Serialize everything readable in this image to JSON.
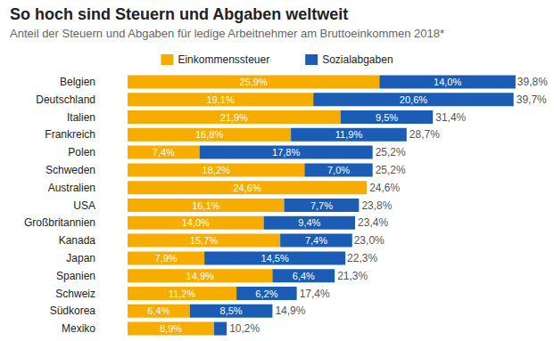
{
  "chart_data": {
    "type": "bar",
    "title": "So hoch sind Steuern und Abgaben weltweit",
    "subtitle": "Anteil der Steuern und Abgaben für ledige Arbeitnehmer am Bruttoeinkommen 2018*",
    "orientation": "horizontal",
    "stacked": true,
    "data_labels": true,
    "tick_labels": "y",
    "grid": false,
    "legend": "top",
    "xlim": [
      0,
      40
    ],
    "categories": [
      "Belgien",
      "Deutschland",
      "Italien",
      "Frankreich",
      "Polen",
      "Schweden",
      "Australien",
      "USA",
      "Großbritannien",
      "Kanada",
      "Japan",
      "Spanien",
      "Schweiz",
      "Südkorea",
      "Mexiko"
    ],
    "series": [
      {
        "name": "Einkommenssteuer",
        "color": "#f7ac00",
        "values": [
          25.9,
          19.1,
          21.9,
          16.8,
          7.4,
          18.2,
          24.6,
          16.1,
          14.0,
          15.7,
          7.9,
          14.9,
          11.2,
          6.4,
          8.9
        ],
        "value_labels": [
          "25,9%",
          "19,1%",
          "21,9%",
          "16,8%",
          "7,4%",
          "18,2%",
          "24,6%",
          "16,1%",
          "14,0%",
          "15,7%",
          "7,9%",
          "14,9%",
          "11,2%",
          "6,4%",
          "8,9%"
        ]
      },
      {
        "name": "Sozialabgaben",
        "color": "#1b5cb5",
        "values": [
          14.0,
          20.6,
          9.5,
          11.9,
          17.8,
          7.0,
          null,
          7.7,
          9.4,
          7.4,
          14.5,
          6.4,
          6.2,
          8.5,
          1.3
        ],
        "value_labels": [
          "14,0%",
          "20,6%",
          "9,5%",
          "11,9%",
          "17,8%",
          "7,0%",
          null,
          "7,7%",
          "9,4%",
          "7,4%",
          "14,5%",
          "6,4%",
          "6,2%",
          "8,5%",
          null
        ]
      }
    ],
    "totals": [
      39.8,
      39.7,
      31.4,
      28.7,
      25.2,
      25.2,
      24.6,
      23.8,
      23.4,
      23.0,
      22.3,
      21.3,
      17.4,
      14.9,
      10.2
    ],
    "total_labels": [
      "39,8%",
      "39,7%",
      "31,4%",
      "28,7%",
      "25,2%",
      "25,2%",
      "24,6%",
      "23,8%",
      "23,4%",
      "23,0%",
      "22,3%",
      "21,3%",
      "17,4%",
      "14,9%",
      "10,2%"
    ]
  }
}
